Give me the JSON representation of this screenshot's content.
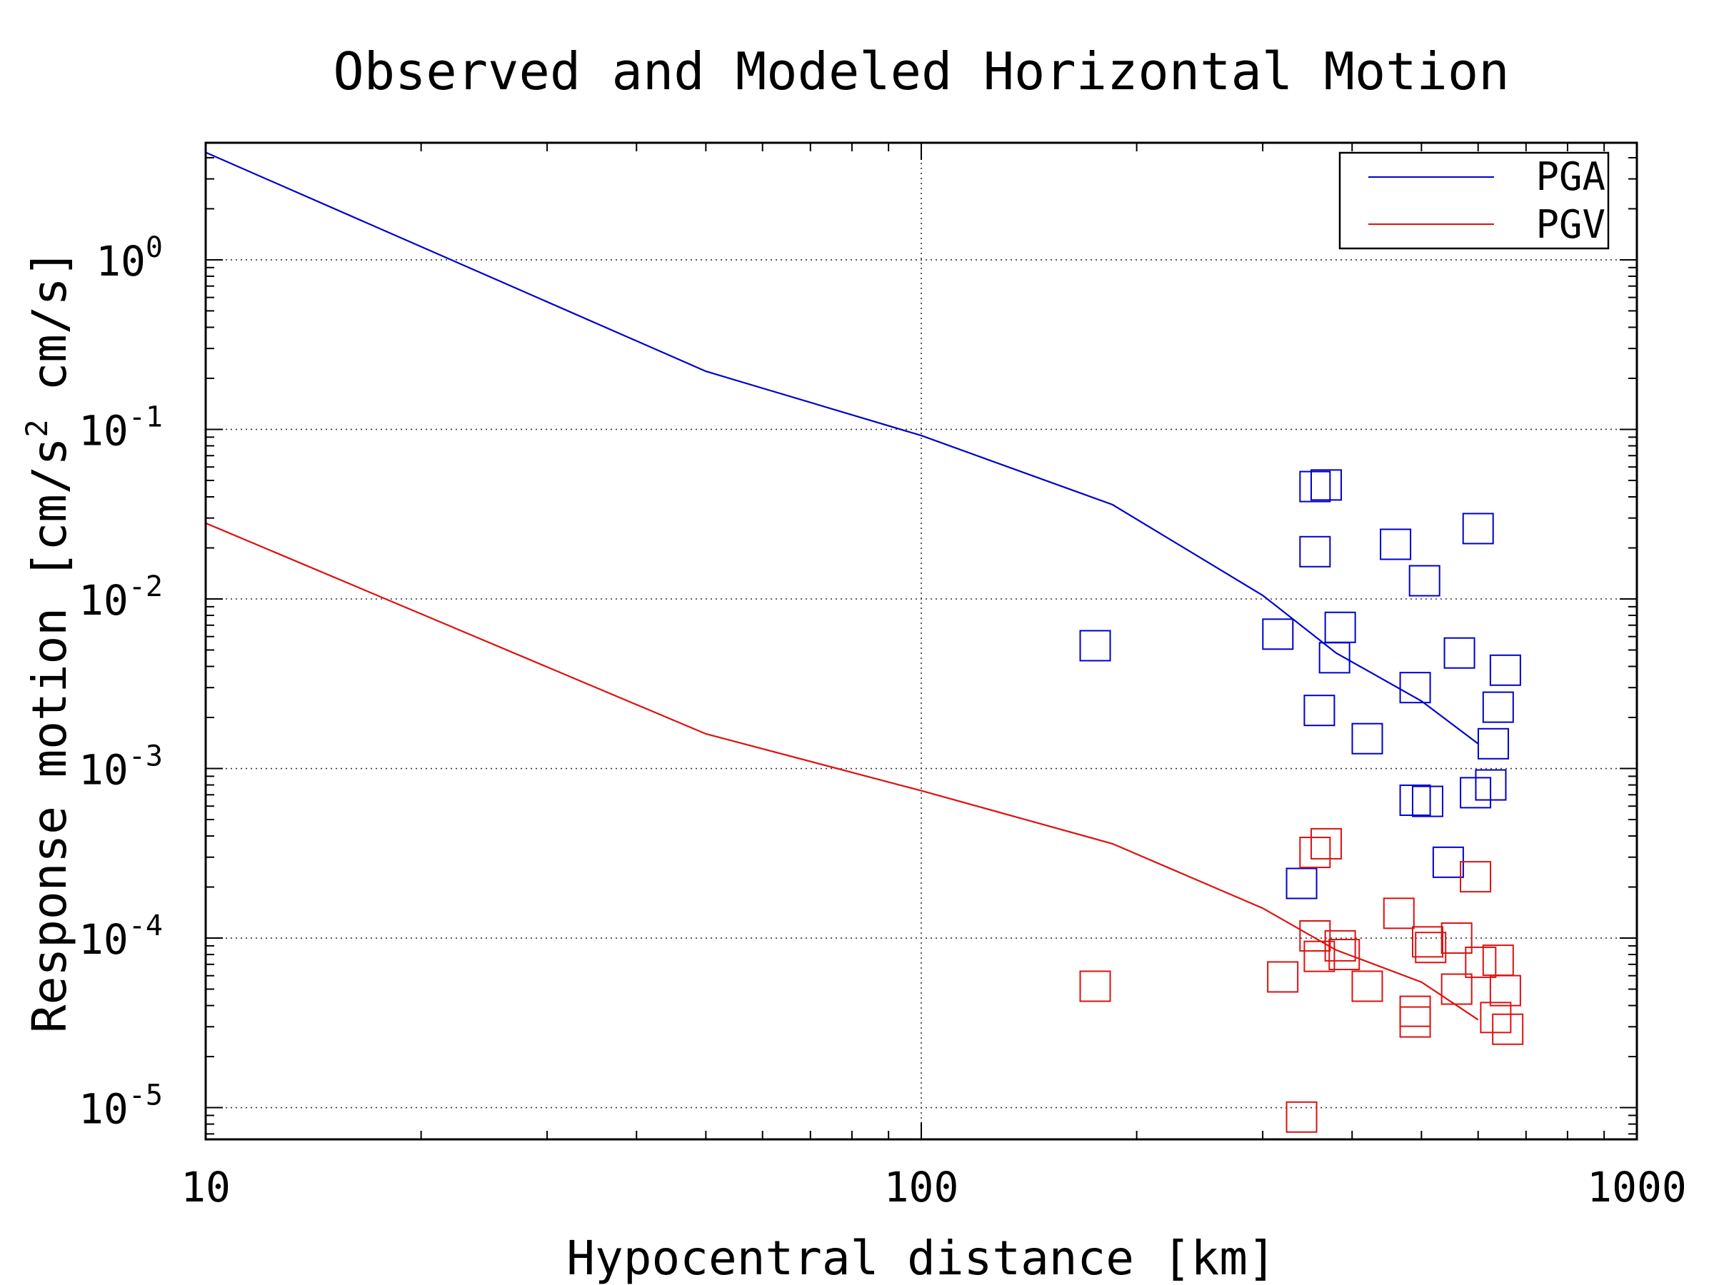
{
  "chart_data": {
    "type": "scatter",
    "title": "Observed and Modeled Horizontal Motion",
    "xlabel": "Hypocentral distance [km]",
    "ylabel": "Response motion [cm/s",
    "ylabel_sup": "2",
    "ylabel_tail": " cm/s]",
    "x_scale": "log",
    "y_scale": "log",
    "xlim": [
      10,
      1000
    ],
    "ylim": [
      6.5e-06,
      4.9
    ],
    "x_ticks": [
      {
        "value": 10,
        "label": "10"
      },
      {
        "value": 100,
        "label": "100"
      },
      {
        "value": 1000,
        "label": "1000"
      }
    ],
    "y_ticks": [
      {
        "value": 1e-05,
        "base": "10",
        "exp": "-5"
      },
      {
        "value": 0.0001,
        "base": "10",
        "exp": "-4"
      },
      {
        "value": 0.001,
        "base": "10",
        "exp": "-3"
      },
      {
        "value": 0.01,
        "base": "10",
        "exp": "-2"
      },
      {
        "value": 0.1,
        "base": "10",
        "exp": "-1"
      },
      {
        "value": 1,
        "base": "10",
        "exp": "0"
      }
    ],
    "grid": true,
    "legend_position": "top-right",
    "series": [
      {
        "name": "PGA",
        "color": "#0000cc",
        "line": [
          [
            10,
            4.3
          ],
          [
            50,
            0.22
          ],
          [
            100,
            0.092
          ],
          [
            185,
            0.036
          ],
          [
            300,
            0.0105
          ],
          [
            380,
            0.0048
          ],
          [
            500,
            0.0025
          ],
          [
            600,
            0.0014
          ]
        ],
        "points": [
          [
            175,
            0.0053
          ],
          [
            355,
            0.046
          ],
          [
            368,
            0.047
          ],
          [
            355,
            0.019
          ],
          [
            460,
            0.021
          ],
          [
            505,
            0.0128
          ],
          [
            600,
            0.026
          ],
          [
            315,
            0.0062
          ],
          [
            385,
            0.0068
          ],
          [
            378,
            0.0045
          ],
          [
            490,
            0.003
          ],
          [
            565,
            0.0048
          ],
          [
            655,
            0.0038
          ],
          [
            360,
            0.0022
          ],
          [
            420,
            0.0015
          ],
          [
            640,
            0.0023
          ],
          [
            630,
            0.0014
          ],
          [
            490,
            0.00065
          ],
          [
            510,
            0.00064
          ],
          [
            595,
            0.00072
          ],
          [
            625,
            0.0008
          ],
          [
            545,
            0.00028
          ],
          [
            340,
            0.00021
          ]
        ]
      },
      {
        "name": "PGV",
        "color": "#dd1111",
        "line": [
          [
            10,
            0.028
          ],
          [
            50,
            0.0016
          ],
          [
            100,
            0.00074
          ],
          [
            185,
            0.00036
          ],
          [
            300,
            0.00015
          ],
          [
            380,
            8.5e-05
          ],
          [
            500,
            5.5e-05
          ],
          [
            600,
            3.3e-05
          ]
        ],
        "points": [
          [
            175,
            5.2e-05
          ],
          [
            320,
            5.9e-05
          ],
          [
            340,
            8.8e-06
          ],
          [
            355,
            0.00032
          ],
          [
            368,
            0.00036
          ],
          [
            355,
            0.000103
          ],
          [
            360,
            7.8e-05
          ],
          [
            385,
            9e-05
          ],
          [
            390,
            8e-05
          ],
          [
            420,
            5.2e-05
          ],
          [
            465,
            0.00014
          ],
          [
            490,
            3.7e-05
          ],
          [
            490,
            3.2e-05
          ],
          [
            510,
            9.5e-05
          ],
          [
            515,
            8.8e-05
          ],
          [
            560,
            0.0001
          ],
          [
            560,
            5e-05
          ],
          [
            595,
            0.00023
          ],
          [
            605,
            7.2e-05
          ],
          [
            640,
            7.4e-05
          ],
          [
            635,
            3.4e-05
          ],
          [
            655,
            4.9e-05
          ],
          [
            660,
            2.9e-05
          ]
        ]
      }
    ]
  }
}
